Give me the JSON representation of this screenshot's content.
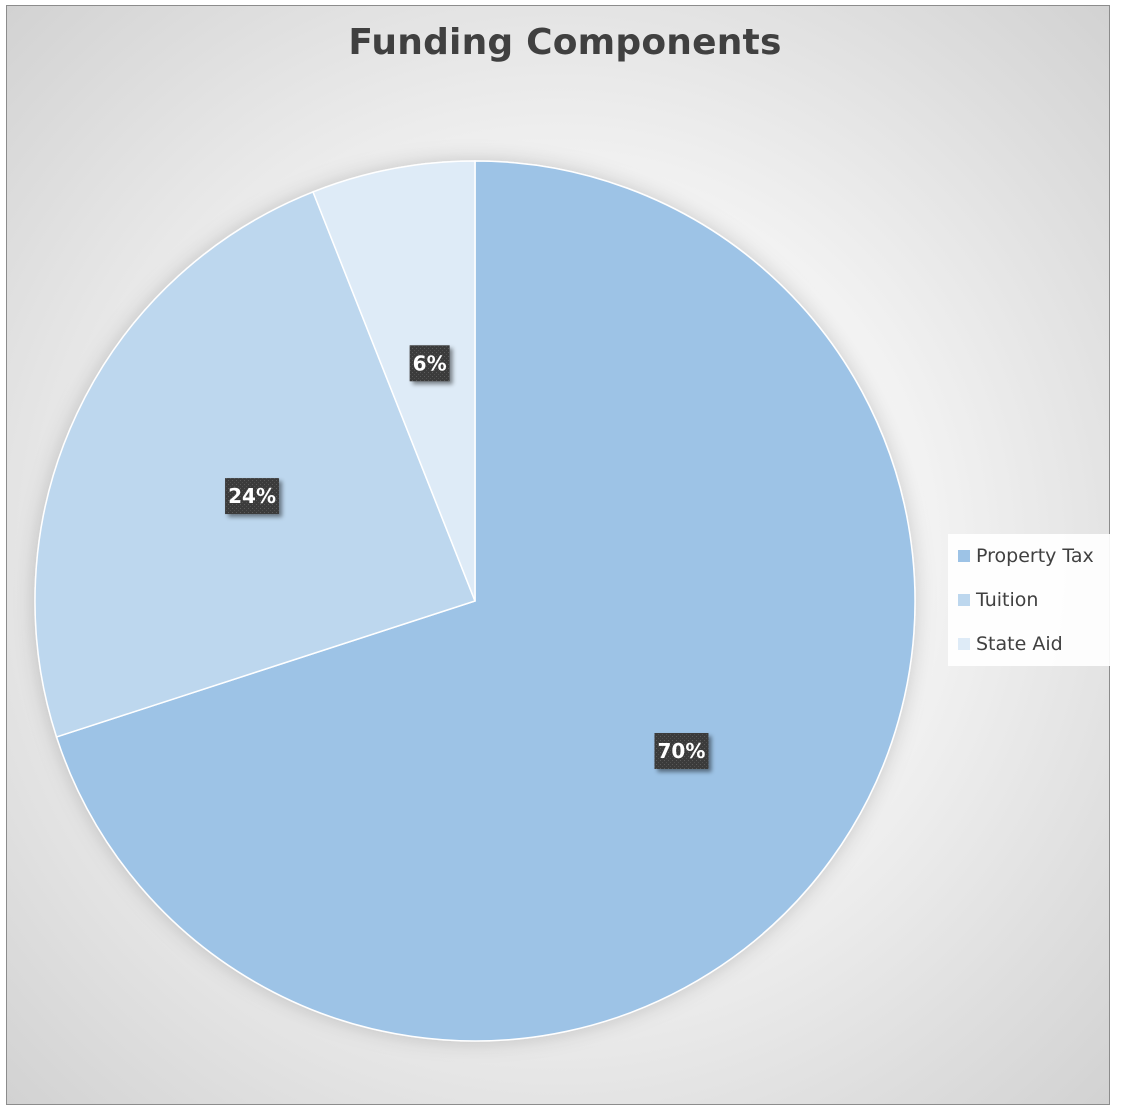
{
  "chart_data": {
    "type": "pie",
    "title": "Funding Components",
    "categories": [
      "Property Tax",
      "Tuition",
      "State Aid"
    ],
    "values": [
      70,
      24,
      6
    ],
    "data_labels": [
      "70%",
      "24%",
      "6%"
    ],
    "colors": [
      "#9dc3e6",
      "#bdd7ee",
      "#deebf7"
    ],
    "legend_position": "right"
  }
}
